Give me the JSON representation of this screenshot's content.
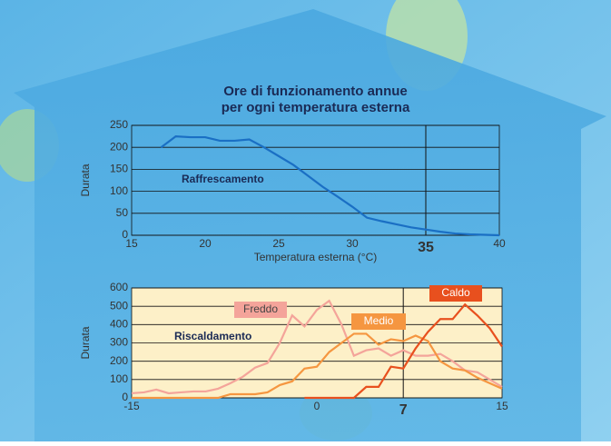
{
  "chart_data": [
    {
      "type": "line",
      "title": [
        "Ore di funzionamento annue",
        "per ogni temperatura esterna"
      ],
      "ylabel": "Durata",
      "xlabel": "Temperatura esterna (°C)",
      "annotation": "Raffrescamento",
      "x": [
        17,
        18,
        19,
        20,
        21,
        22,
        23,
        24,
        25,
        26,
        27,
        28,
        29,
        30,
        31,
        32,
        33,
        34,
        35,
        36,
        37,
        38,
        39,
        40
      ],
      "series": [
        {
          "name": "Raffrescamento",
          "color": "#1a6fc4",
          "values": [
            200,
            225,
            223,
            223,
            215,
            215,
            218,
            200,
            180,
            160,
            135,
            110,
            88,
            65,
            40,
            32,
            25,
            18,
            13,
            8,
            4,
            2,
            1,
            0
          ]
        }
      ],
      "xlim": [
        15,
        40
      ],
      "xticks": [
        15,
        20,
        25,
        30,
        35,
        40
      ],
      "ylim": [
        0,
        250
      ],
      "yticks": [
        0,
        50,
        100,
        150,
        200,
        250
      ],
      "vline": 35,
      "grid": true
    },
    {
      "type": "line",
      "ylabel": "Durata",
      "annotation": "Riscaldamento",
      "x": [
        -15,
        -14,
        -13,
        -12,
        -11,
        -10,
        -9,
        -8,
        -7,
        -6,
        -5,
        -4,
        -3,
        -2,
        -1,
        0,
        1,
        2,
        3,
        4,
        5,
        6,
        7,
        8,
        9,
        10,
        11,
        12,
        13,
        14,
        15
      ],
      "series": [
        {
          "name": "Freddo",
          "color": "#f4a49a",
          "values": [
            25,
            30,
            45,
            25,
            30,
            35,
            35,
            50,
            80,
            115,
            165,
            190,
            300,
            450,
            390,
            480,
            530,
            400,
            230,
            260,
            270,
            230,
            260,
            230,
            230,
            240,
            200,
            150,
            140,
            100,
            60
          ]
        },
        {
          "name": "Medio",
          "color": "#f59640",
          "values": [
            0,
            0,
            0,
            0,
            0,
            0,
            0,
            0,
            20,
            20,
            20,
            30,
            70,
            90,
            160,
            170,
            250,
            300,
            350,
            350,
            290,
            320,
            310,
            340,
            310,
            200,
            160,
            150,
            110,
            80,
            50
          ]
        },
        {
          "name": "Caldo",
          "color": "#e8501e",
          "values": [
            null,
            null,
            null,
            null,
            null,
            null,
            null,
            null,
            null,
            null,
            null,
            null,
            null,
            null,
            0,
            0,
            0,
            0,
            0,
            60,
            60,
            170,
            160,
            270,
            360,
            430,
            430,
            510,
            450,
            380,
            280
          ]
        }
      ],
      "xlim": [
        -15,
        15
      ],
      "xticks": [
        -15,
        0,
        7,
        15
      ],
      "ylim": [
        0,
        600
      ],
      "yticks": [
        0,
        100,
        200,
        300,
        400,
        500,
        600
      ],
      "vline": 7,
      "grid": true
    }
  ]
}
